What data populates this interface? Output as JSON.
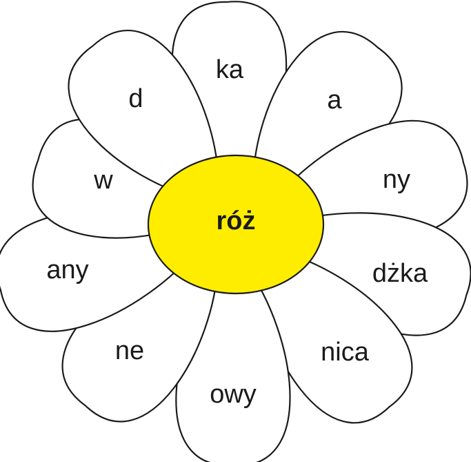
{
  "center": {
    "label": "róż"
  },
  "petals": [
    {
      "label": "ka"
    },
    {
      "label": "a"
    },
    {
      "label": "ny"
    },
    {
      "label": "dżka"
    },
    {
      "label": "nica"
    },
    {
      "label": "owy"
    },
    {
      "label": "ne"
    },
    {
      "label": "any"
    },
    {
      "label": "w"
    },
    {
      "label": "d"
    }
  ]
}
